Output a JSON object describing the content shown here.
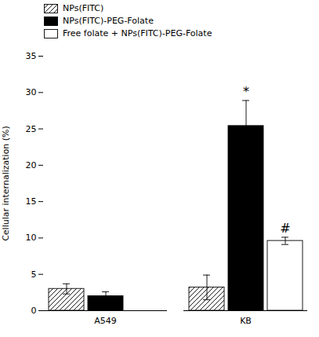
{
  "chart_data": {
    "type": "bar",
    "categories": [
      "A549",
      "KB"
    ],
    "series": [
      {
        "name": "NPs(FITC)",
        "color": "white",
        "values": [
          3.0,
          3.2
        ],
        "errors": [
          0.7,
          1.7
        ]
      },
      {
        "name": "NPs(FITC)-PEG-Folate",
        "color": "black",
        "values": [
          2.0,
          25.4
        ],
        "errors": [
          0.6,
          3.5
        ]
      },
      {
        "name": "Free folate + NPs(FITC)-PEG-Folate",
        "color": "white",
        "values": [
          null,
          9.6
        ],
        "errors": [
          null,
          0.5
        ]
      }
    ],
    "ylabel": "Cellular internalization (%)",
    "ylim": [
      0,
      35
    ],
    "yticks": [
      0,
      5,
      10,
      15,
      20,
      25,
      30,
      35
    ],
    "annotations": [
      {
        "text": "*",
        "category": "KB",
        "series": "NPs(FITC)-PEG-Folate"
      },
      {
        "text": "#",
        "category": "KB",
        "series": "Free folate + NPs(FITC)-PEG-Folate"
      }
    ],
    "legend": "upper left",
    "grid": false
  }
}
